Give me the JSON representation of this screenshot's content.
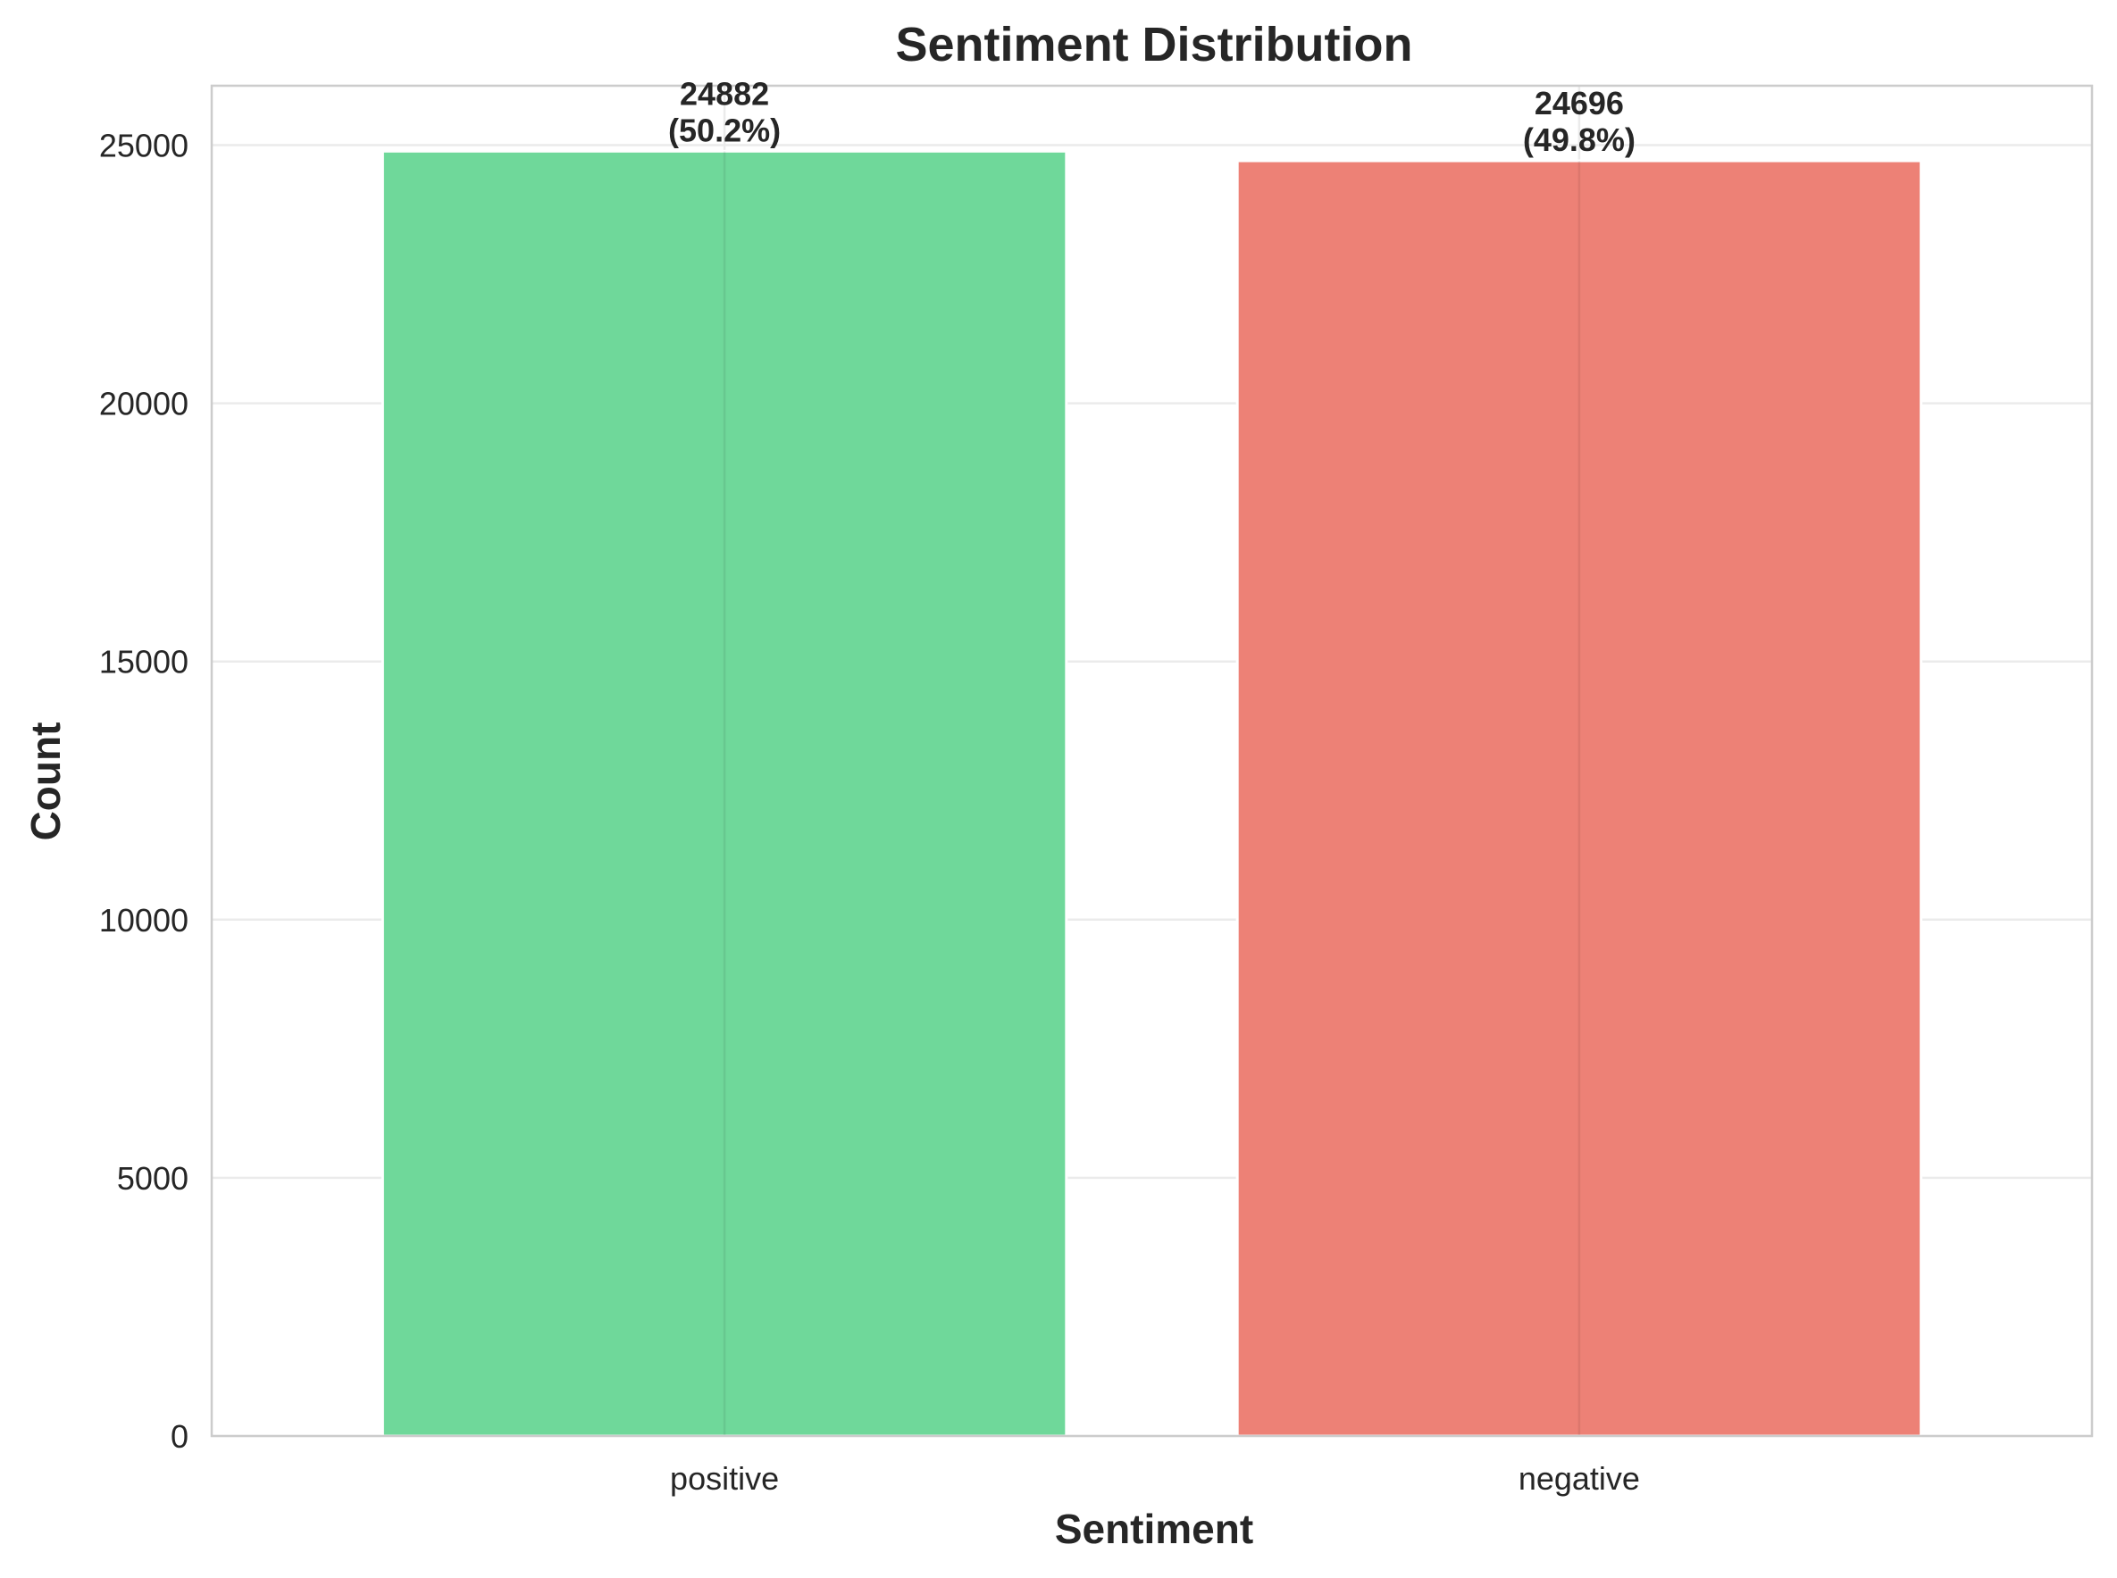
{
  "chart_data": {
    "type": "bar",
    "title": "Sentiment Distribution",
    "xlabel": "Sentiment",
    "ylabel": "Count",
    "categories": [
      "positive",
      "negative"
    ],
    "values": [
      24882,
      24696
    ],
    "percent_labels": [
      "(50.2%)",
      "(49.8%)"
    ],
    "colors": [
      "#6fd89a",
      "#ed8176"
    ],
    "ylim": [
      0,
      26150
    ],
    "yticks": [
      0,
      5000,
      10000,
      15000,
      20000,
      25000
    ],
    "grid": true,
    "legend": "none"
  }
}
